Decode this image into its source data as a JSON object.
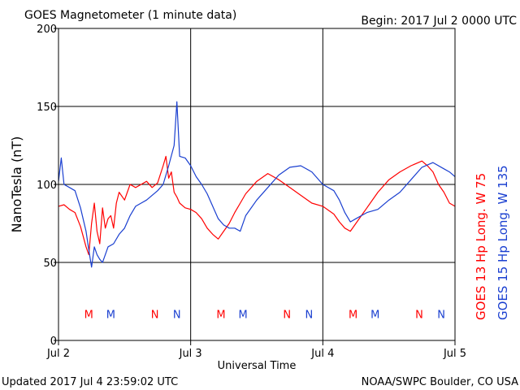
{
  "chart_data": {
    "type": "line",
    "title": "GOES Magnetometer (1 minute data)",
    "begin_label": "Begin:  2017 Jul 2 0000 UTC",
    "ylabel": "NanoTesla (nT)",
    "xlabel": "Universal Time",
    "ylim": [
      0,
      200
    ],
    "xlim": [
      0,
      72
    ],
    "x_units": "hours since 2017 Jul 2 0000 UTC",
    "y_ticks": [
      {
        "value": 0,
        "label": "0"
      },
      {
        "value": 50,
        "label": "50"
      },
      {
        "value": 100,
        "label": "100"
      },
      {
        "value": 150,
        "label": "150"
      },
      {
        "value": 200,
        "label": "200"
      }
    ],
    "x_ticks": [
      {
        "value": 0,
        "label": "Jul 2"
      },
      {
        "value": 24,
        "label": "Jul 3"
      },
      {
        "value": 48,
        "label": "Jul 4"
      },
      {
        "value": 72,
        "label": "Jul 5"
      }
    ],
    "grid": true,
    "series": [
      {
        "name": "GOES 13 Hp  Long. W 75",
        "color": "#ff0000",
        "x": [
          0,
          1,
          2,
          3,
          4,
          5,
          5.5,
          6,
          6.5,
          7,
          7.5,
          8,
          8.5,
          9,
          9.5,
          10,
          10.5,
          11,
          12,
          13,
          14,
          15,
          16,
          17,
          18,
          19,
          19.5,
          20,
          20.5,
          21,
          21.5,
          22,
          23,
          24,
          25,
          26,
          27,
          28,
          29,
          30,
          31,
          32,
          33,
          34,
          36,
          38,
          40,
          42,
          44,
          46,
          48,
          50,
          51,
          52,
          53,
          54,
          55,
          56,
          58,
          60,
          62,
          64,
          66,
          67,
          68,
          69,
          70,
          71,
          72
        ],
        "y": [
          86,
          87,
          84,
          82,
          73,
          60,
          55,
          75,
          88,
          70,
          62,
          85,
          72,
          78,
          80,
          72,
          88,
          95,
          90,
          100,
          98,
          100,
          102,
          98,
          101,
          112,
          118,
          104,
          108,
          95,
          92,
          88,
          85,
          84,
          82,
          78,
          72,
          68,
          65,
          70,
          75,
          82,
          88,
          94,
          102,
          107,
          103,
          98,
          93,
          88,
          86,
          81,
          76,
          72,
          70,
          75,
          80,
          85,
          95,
          103,
          108,
          112,
          115,
          112,
          108,
          100,
          95,
          88,
          86
        ]
      },
      {
        "name": "GOES 15 Hp  Long. W 135",
        "color": "#1a3fd0",
        "x": [
          0,
          0.5,
          1,
          2,
          3,
          4,
          5,
          5.5,
          6,
          6.5,
          7,
          7.5,
          8,
          8.5,
          9,
          10,
          11,
          12,
          13,
          14,
          15,
          16,
          17,
          18,
          19,
          20,
          21,
          21.5,
          22,
          23,
          24,
          25,
          26,
          27,
          28,
          29,
          30,
          31,
          32,
          33,
          34,
          36,
          38,
          40,
          42,
          44,
          46,
          48,
          50,
          51,
          52,
          53,
          54,
          55,
          56,
          58,
          60,
          62,
          64,
          66,
          68,
          70,
          71,
          72
        ],
        "y": [
          102,
          117,
          100,
          98,
          96,
          85,
          70,
          58,
          47,
          60,
          55,
          52,
          50,
          55,
          60,
          62,
          68,
          72,
          80,
          86,
          88,
          90,
          93,
          96,
          100,
          112,
          125,
          153,
          118,
          117,
          112,
          105,
          100,
          94,
          86,
          78,
          74,
          72,
          72,
          70,
          80,
          90,
          98,
          106,
          111,
          112,
          108,
          100,
          96,
          90,
          82,
          76,
          78,
          80,
          82,
          84,
          90,
          95,
          103,
          111,
          114,
          110,
          108,
          105
        ]
      }
    ],
    "markers": [
      {
        "label": "M",
        "x": 5.5,
        "series": 0
      },
      {
        "label": "M",
        "x": 9.5,
        "series": 1
      },
      {
        "label": "N",
        "x": 17.5,
        "series": 0
      },
      {
        "label": "N",
        "x": 21.5,
        "series": 1
      },
      {
        "label": "M",
        "x": 29.5,
        "series": 0
      },
      {
        "label": "M",
        "x": 33.5,
        "series": 1
      },
      {
        "label": "N",
        "x": 41.5,
        "series": 0
      },
      {
        "label": "N",
        "x": 45.5,
        "series": 1
      },
      {
        "label": "M",
        "x": 53.5,
        "series": 0
      },
      {
        "label": "M",
        "x": 57.5,
        "series": 1
      },
      {
        "label": "N",
        "x": 65.5,
        "series": 0
      },
      {
        "label": "N",
        "x": 69.5,
        "series": 1
      }
    ],
    "marker_value": 17
  },
  "footer": {
    "updated": "Updated 2017 Jul  4 23:59:02 UTC",
    "source": "NOAA/SWPC Boulder, CO USA"
  }
}
